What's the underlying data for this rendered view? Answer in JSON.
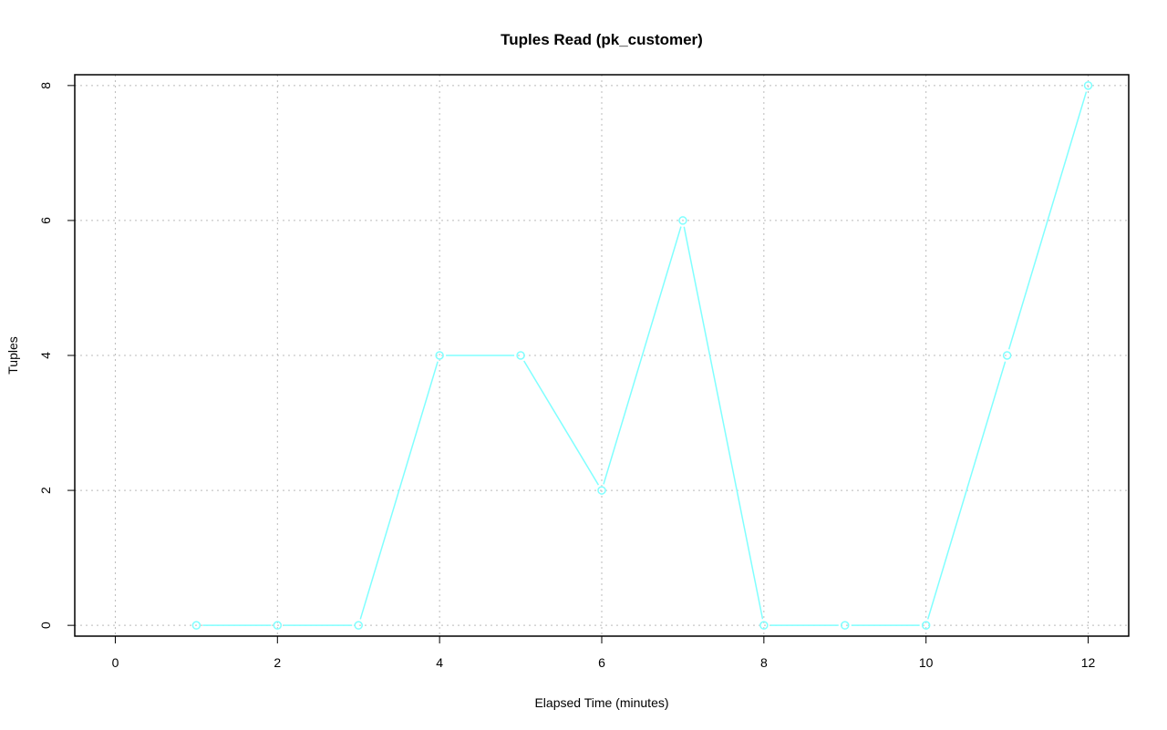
{
  "chart_data": {
    "type": "line",
    "title": "Tuples Read (pk_customer)",
    "xlabel": "Elapsed Time (minutes)",
    "ylabel": "Tuples",
    "xlim": [
      -0.5,
      12.5
    ],
    "ylim": [
      -0.16,
      8.16
    ],
    "xticks": [
      0,
      2,
      4,
      6,
      8,
      10,
      12
    ],
    "yticks": [
      0,
      2,
      4,
      6,
      8
    ],
    "grid": true,
    "series_color": "#80ffff",
    "x": [
      1,
      2,
      3,
      4,
      5,
      6,
      7,
      8,
      9,
      10,
      11,
      12
    ],
    "y": [
      0,
      0,
      0,
      4,
      4,
      2,
      6,
      0,
      0,
      0,
      4,
      8
    ]
  }
}
